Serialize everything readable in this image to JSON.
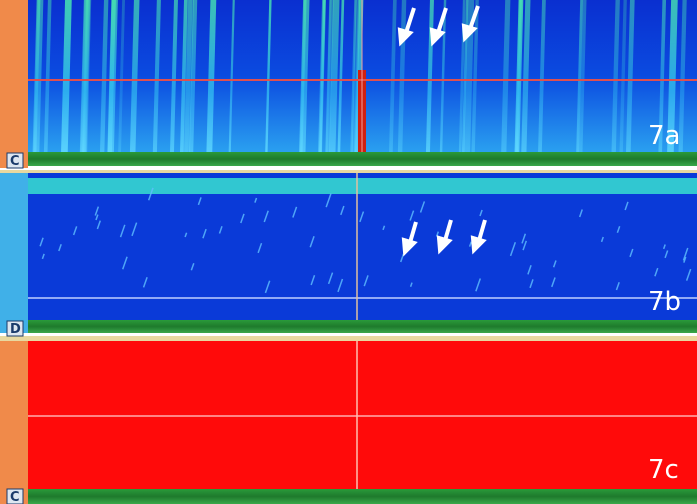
{
  "panels": [
    {
      "letter": "C",
      "label": "7a"
    },
    {
      "letter": "D",
      "label": "7b"
    },
    {
      "letter": "C",
      "label": "7c"
    }
  ]
}
